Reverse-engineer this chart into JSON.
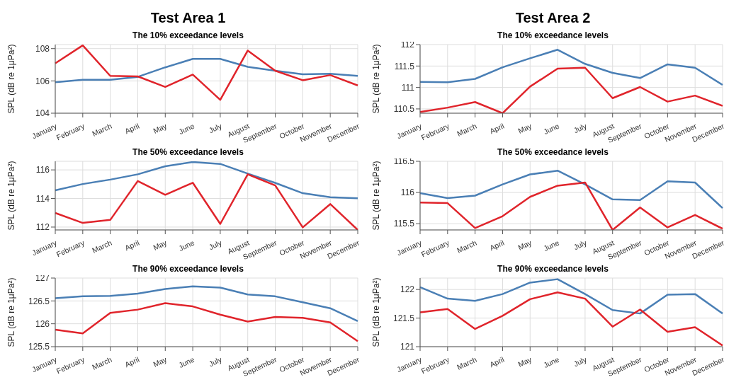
{
  "chart_data": [
    {
      "type": "line",
      "annotations": [
        "Test Area 1"
      ],
      "title": "The 10% exceedance levels",
      "ylabel": "SPL (dB re 1μPa²)",
      "categories": [
        "January",
        "February",
        "March",
        "April",
        "May",
        "June",
        "July",
        "August",
        "September",
        "October",
        "November",
        "December"
      ],
      "ylim": [
        104,
        108.25
      ],
      "yticks": [
        104,
        106,
        108
      ],
      "grid": true,
      "series": [
        {
          "color": "#4a7fb5",
          "values": [
            105.92,
            106.07,
            106.07,
            106.25,
            106.84,
            107.36,
            107.36,
            106.87,
            106.63,
            106.41,
            106.44,
            106.31
          ]
        },
        {
          "color": "#e0242b",
          "values": [
            107.09,
            108.2,
            106.31,
            106.28,
            105.63,
            106.39,
            104.83,
            107.88,
            106.63,
            106.04,
            106.36,
            105.72
          ]
        }
      ]
    },
    {
      "type": "line",
      "annotations": [
        "Test Area 2"
      ],
      "title": "The 10% exceedance levels",
      "ylabel": "SPL (dB re 1μPa²)",
      "categories": [
        "January",
        "February",
        "March",
        "April",
        "May",
        "June",
        "July",
        "August",
        "September",
        "October",
        "November",
        "December"
      ],
      "ylim": [
        110.4,
        112
      ],
      "yticks": [
        110.5,
        111,
        111.5,
        112
      ],
      "grid": true,
      "series": [
        {
          "color": "#4a7fb5",
          "values": [
            111.13,
            111.12,
            111.2,
            111.47,
            111.68,
            111.88,
            111.55,
            111.34,
            111.22,
            111.54,
            111.46,
            111.06
          ]
        },
        {
          "color": "#e0242b",
          "values": [
            110.43,
            110.53,
            110.66,
            110.4,
            111.02,
            111.44,
            111.46,
            110.75,
            111.01,
            110.67,
            110.81,
            110.57
          ]
        }
      ]
    },
    {
      "type": "line",
      "title": "The 50% exceedance levels",
      "ylabel": "SPL (dB re 1μPa²)",
      "categories": [
        "January",
        "February",
        "March",
        "April",
        "May",
        "June",
        "July",
        "August",
        "September",
        "October",
        "November",
        "December"
      ],
      "ylim": [
        111.8,
        116.6
      ],
      "yticks": [
        112,
        114,
        116
      ],
      "grid": true,
      "series": [
        {
          "color": "#4a7fb5",
          "values": [
            114.57,
            115.01,
            115.32,
            115.69,
            116.25,
            116.55,
            116.42,
            115.74,
            115.09,
            114.37,
            114.09,
            114.02
          ]
        },
        {
          "color": "#e0242b",
          "values": [
            112.99,
            112.29,
            112.5,
            115.22,
            114.26,
            115.1,
            112.22,
            115.69,
            114.91,
            111.98,
            113.61,
            111.8
          ]
        }
      ]
    },
    {
      "type": "line",
      "title": "The 50% exceedance levels",
      "ylabel": "SPL (dB re 1μPa²)",
      "categories": [
        "January",
        "February",
        "March",
        "April",
        "May",
        "June",
        "July",
        "August",
        "September",
        "October",
        "November",
        "December"
      ],
      "ylim": [
        115.4,
        116.5
      ],
      "yticks": [
        115.5,
        116,
        116.5
      ],
      "grid": true,
      "series": [
        {
          "color": "#4a7fb5",
          "values": [
            115.99,
            115.91,
            115.95,
            116.13,
            116.29,
            116.35,
            116.13,
            115.89,
            115.88,
            116.18,
            116.16,
            115.75
          ]
        },
        {
          "color": "#e0242b",
          "values": [
            115.84,
            115.83,
            115.43,
            115.62,
            115.93,
            116.11,
            116.16,
            115.4,
            115.76,
            115.44,
            115.64,
            115.42
          ]
        }
      ]
    },
    {
      "type": "line",
      "title": "The 90% exceedance levels",
      "ylabel": "SPL (dB re 1μPa²)",
      "categories": [
        "January",
        "February",
        "March",
        "April",
        "May",
        "June",
        "July",
        "August",
        "September",
        "October",
        "November",
        "December"
      ],
      "ylim": [
        125.5,
        127
      ],
      "yticks": [
        125.5,
        126,
        126.5,
        127
      ],
      "grid": true,
      "series": [
        {
          "color": "#4a7fb5",
          "values": [
            126.56,
            126.6,
            126.61,
            126.66,
            126.76,
            126.82,
            126.79,
            126.64,
            126.6,
            126.47,
            126.34,
            126.06
          ]
        },
        {
          "color": "#e0242b",
          "values": [
            125.87,
            125.79,
            126.24,
            126.31,
            126.45,
            126.38,
            126.2,
            126.05,
            126.15,
            126.13,
            126.03,
            125.62
          ]
        }
      ]
    },
    {
      "type": "line",
      "title": "The 90% exceedance levels",
      "ylabel": "SPL (dB re 1μPa²)",
      "categories": [
        "January",
        "February",
        "March",
        "April",
        "May",
        "June",
        "July",
        "August",
        "September",
        "October",
        "November",
        "December"
      ],
      "ylim": [
        121,
        122.2
      ],
      "yticks": [
        121,
        121.5,
        122
      ],
      "grid": true,
      "series": [
        {
          "color": "#4a7fb5",
          "values": [
            122.04,
            121.84,
            121.8,
            121.92,
            122.12,
            122.18,
            121.92,
            121.64,
            121.58,
            121.91,
            121.92,
            121.58
          ]
        },
        {
          "color": "#e0242b",
          "values": [
            121.6,
            121.66,
            121.31,
            121.54,
            121.83,
            121.95,
            121.84,
            121.35,
            121.65,
            121.26,
            121.34,
            121.02
          ]
        }
      ]
    }
  ]
}
